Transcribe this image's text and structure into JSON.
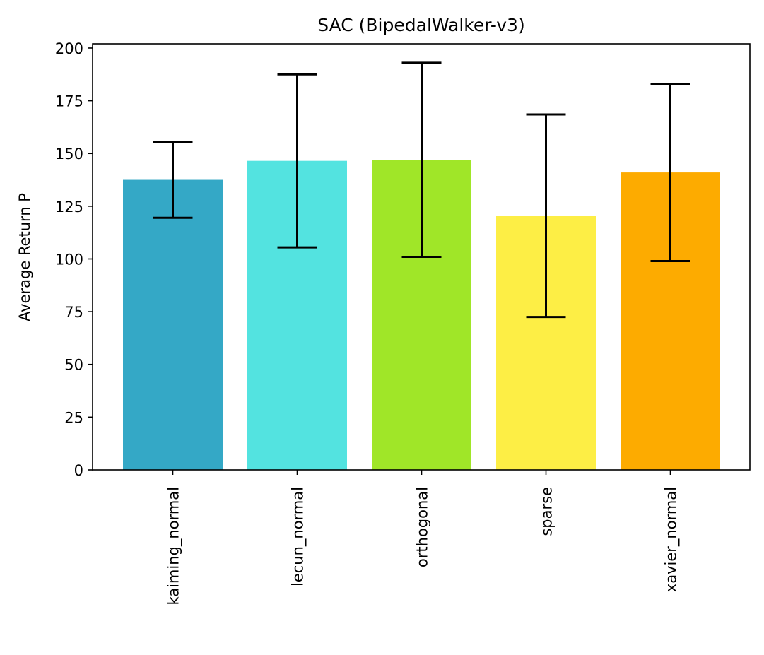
{
  "chart_data": {
    "type": "bar",
    "title": "SAC (BipedalWalker-v3)",
    "xlabel": "",
    "ylabel": "Average Return P",
    "ylim": [
      0,
      202
    ],
    "yticks": [
      "0",
      "25",
      "50",
      "75",
      "100",
      "125",
      "150",
      "175",
      "200"
    ],
    "categories": [
      "kaiming_normal",
      "lecun_normal",
      "orthogonal",
      "sparse",
      "xavier_normal"
    ],
    "values": [
      137.5,
      146.5,
      147,
      120.5,
      141
    ],
    "errors": [
      18,
      41,
      46,
      48,
      42
    ],
    "colors": [
      "#34a8c6",
      "#53e3e0",
      "#a0e628",
      "#fdee45",
      "#fdab00"
    ],
    "grid": false,
    "legend": null
  }
}
